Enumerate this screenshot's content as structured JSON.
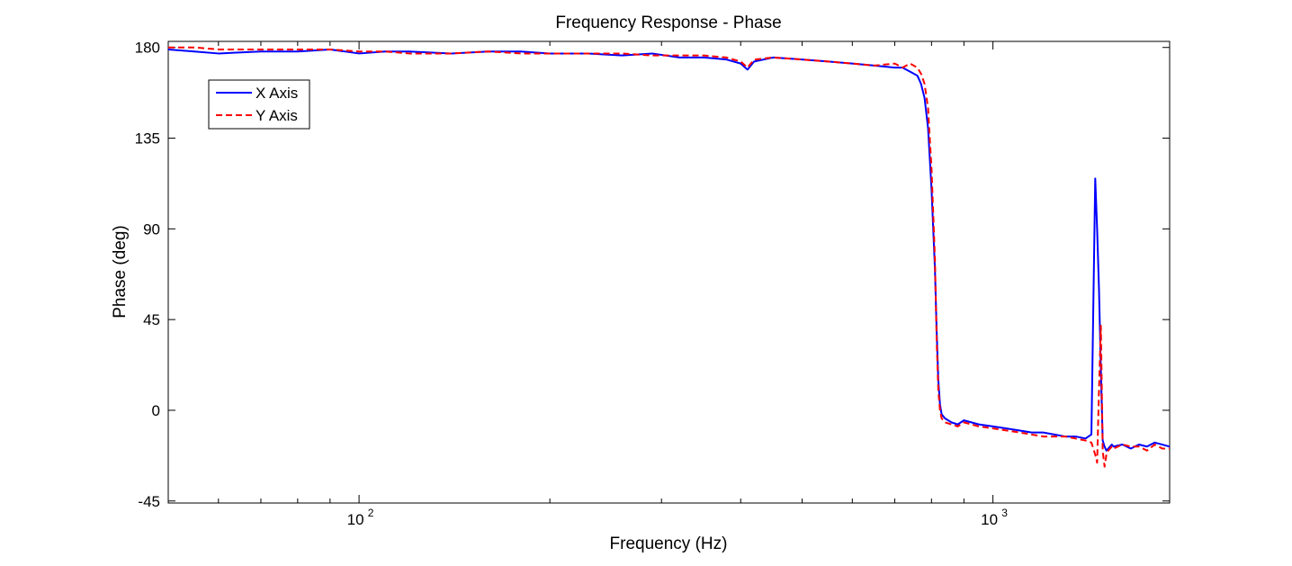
{
  "chart_data": {
    "type": "line",
    "title": "Frequency Response - Phase",
    "xlabel": "Frequency (Hz)",
    "ylabel": "Phase (deg)",
    "xscale": "log",
    "xlim": [
      50,
      1900
    ],
    "ylim": [
      -46,
      183
    ],
    "yticks": [
      180,
      135,
      90,
      45,
      0,
      -45
    ],
    "xticks": [
      {
        "base": "10",
        "exp": "2",
        "value": 100
      },
      {
        "base": "10",
        "exp": "3",
        "value": 1000
      }
    ],
    "grid": false,
    "legend_position": "top-left",
    "series": [
      {
        "name": "X Axis",
        "color": "#0000ff",
        "style": "solid",
        "x": [
          50,
          55,
          60,
          70,
          80,
          90,
          100,
          110,
          120,
          140,
          160,
          180,
          200,
          230,
          260,
          290,
          320,
          350,
          380,
          400,
          410,
          420,
          450,
          500,
          550,
          600,
          650,
          700,
          720,
          740,
          760,
          770,
          780,
          790,
          800,
          810,
          815,
          820,
          825,
          830,
          840,
          860,
          880,
          900,
          950,
          1000,
          1050,
          1100,
          1150,
          1200,
          1250,
          1300,
          1350,
          1400,
          1430,
          1450,
          1460,
          1470,
          1480,
          1490,
          1500,
          1510,
          1520,
          1530,
          1540,
          1550,
          1600,
          1650,
          1700,
          1750,
          1800,
          1850,
          1900
        ],
        "y": [
          179,
          178,
          177,
          178,
          178,
          179,
          177,
          178,
          178,
          177,
          178,
          178,
          177,
          177,
          176,
          177,
          175,
          175,
          174,
          172,
          169,
          173,
          175,
          174,
          173,
          172,
          171,
          170,
          170,
          168,
          166,
          162,
          155,
          140,
          110,
          70,
          40,
          15,
          3,
          -2,
          -4,
          -6,
          -7,
          -5,
          -7,
          -8,
          -9,
          -10,
          -11,
          -11,
          -12,
          -13,
          -13,
          -14,
          -12,
          115,
          90,
          60,
          20,
          -15,
          -18,
          -20,
          -19,
          -18,
          -17,
          -18,
          -17,
          -19,
          -17,
          -18,
          -16,
          -17,
          -18
        ]
      },
      {
        "name": "Y Axis",
        "color": "#ff0000",
        "style": "dashed",
        "x": [
          50,
          55,
          60,
          70,
          80,
          90,
          100,
          110,
          120,
          140,
          160,
          180,
          200,
          230,
          260,
          290,
          320,
          350,
          380,
          400,
          410,
          420,
          450,
          500,
          550,
          600,
          650,
          700,
          720,
          740,
          760,
          770,
          780,
          790,
          800,
          810,
          815,
          820,
          825,
          830,
          840,
          860,
          880,
          900,
          950,
          1000,
          1050,
          1100,
          1150,
          1200,
          1250,
          1300,
          1350,
          1400,
          1430,
          1450,
          1460,
          1470,
          1480,
          1490,
          1500,
          1510,
          1520,
          1530,
          1540,
          1550,
          1600,
          1650,
          1700,
          1750,
          1800,
          1850,
          1900
        ],
        "y": [
          180,
          180,
          179,
          179,
          179,
          179,
          178,
          178,
          177,
          177,
          178,
          177,
          177,
          177,
          177,
          176,
          176,
          176,
          175,
          173,
          170,
          174,
          175,
          174,
          173,
          172,
          171,
          172,
          170,
          172,
          170,
          167,
          162,
          150,
          120,
          75,
          35,
          10,
          0,
          -4,
          -6,
          -7,
          -8,
          -6,
          -8,
          -9,
          -10,
          -11,
          -12,
          -13,
          -13,
          -13,
          -14,
          -15,
          -16,
          -22,
          -26,
          10,
          42,
          -20,
          -28,
          -22,
          -20,
          -19,
          -18,
          -19,
          -17,
          -18,
          -18,
          -20,
          -17,
          -19,
          -19
        ]
      }
    ]
  }
}
